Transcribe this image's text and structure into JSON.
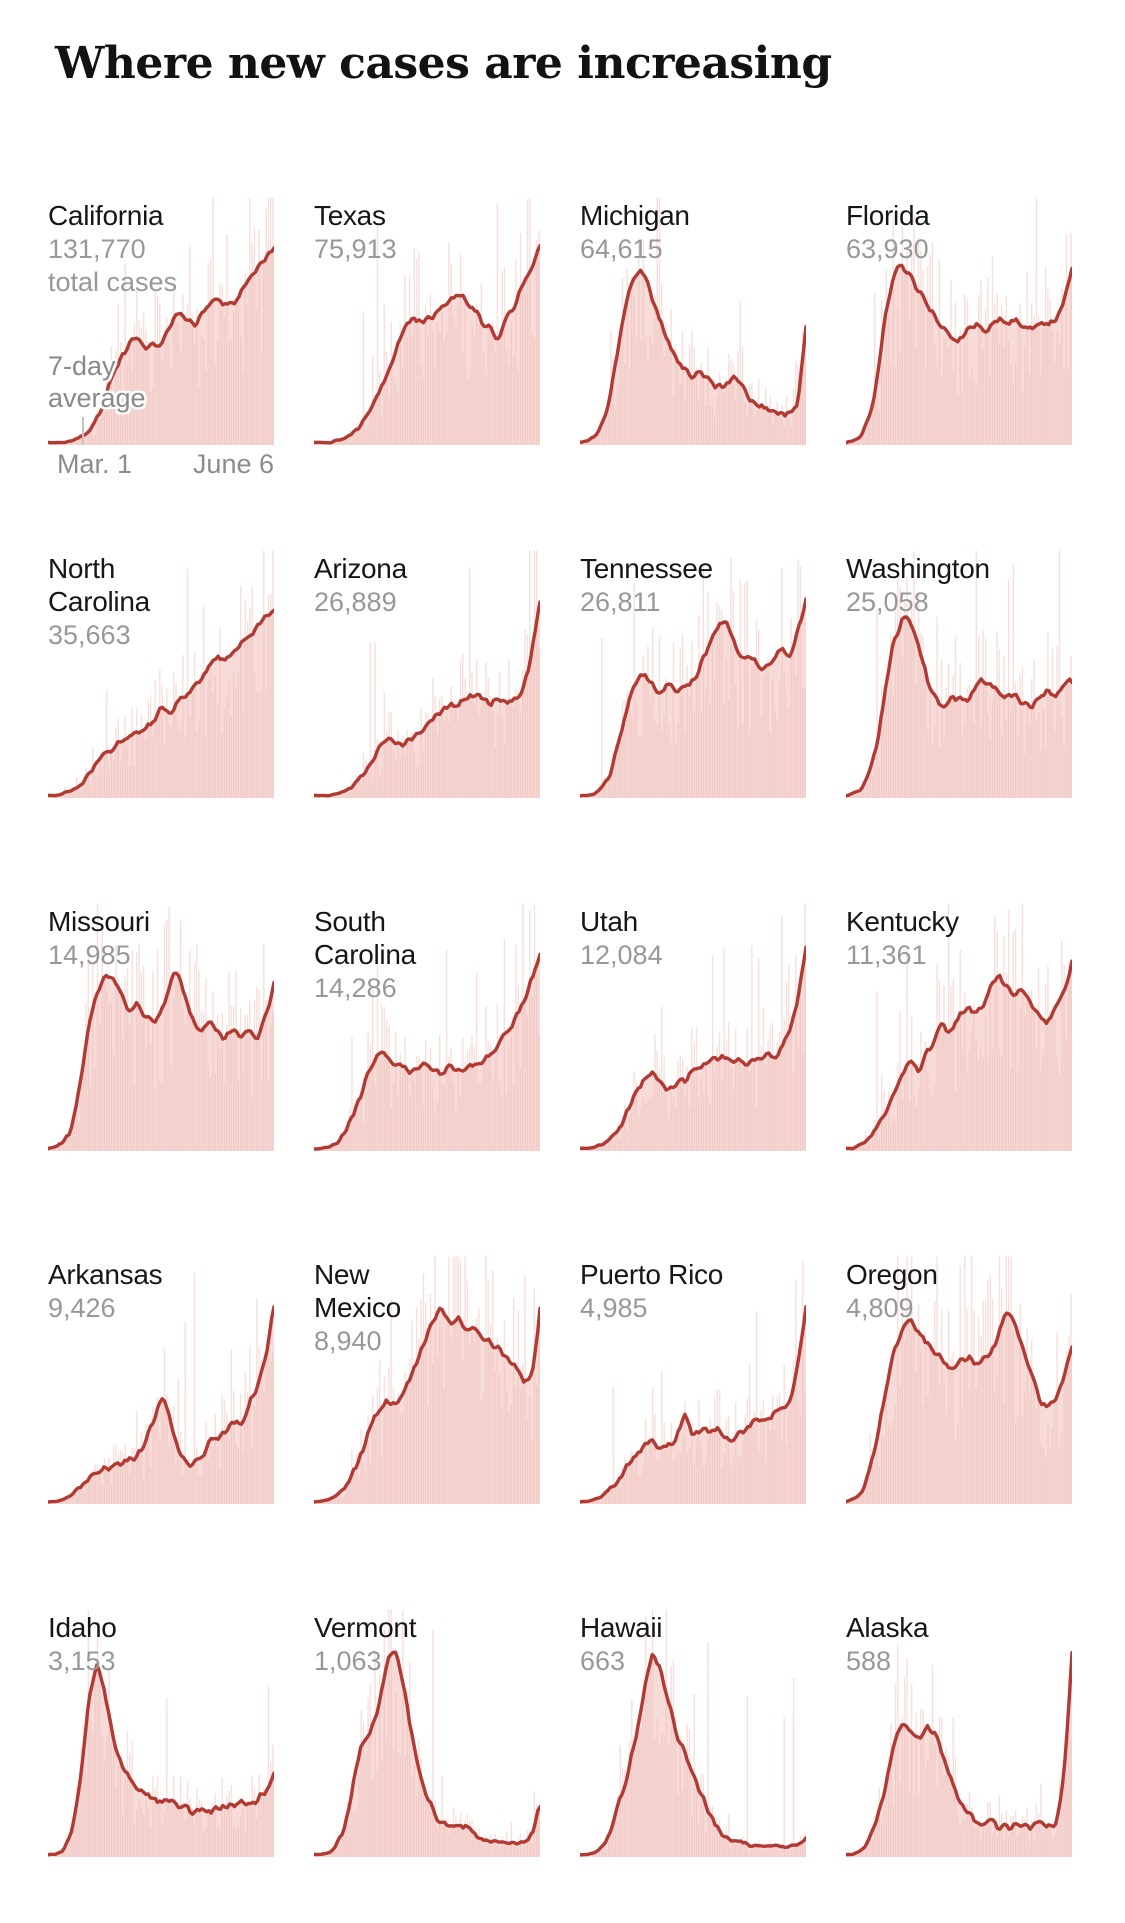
{
  "title": "Where new cases are increasing",
  "colors": {
    "line_red": "#b13a32",
    "fill_pink": "#eeb8b2",
    "title_text": "#121212",
    "state_name_text": "#161616",
    "number_text": "#989898",
    "annotation_text": "#8a8a8a",
    "axis_tick": "#c4c4c4",
    "background": "#ffffff"
  },
  "axis": {
    "start_label": "Mar. 1",
    "end_label": "June 6"
  },
  "annotations": {
    "total_cases_suffix": "total cases",
    "avg_label": "7-day average"
  },
  "chart_data": {
    "type": "area",
    "layout": "small-multiples-grid-4-cols-5-rows",
    "title": "Where new cases are increasing",
    "x_range": [
      "Mar. 1",
      "June 6"
    ],
    "bars_series": "daily new cases",
    "line_series": "7-day average",
    "y_normalization": "each panel normalized to its own scale; avg_trend values are fraction of panel plot height",
    "states": [
      {
        "name": "California",
        "display_name": "California",
        "total_cases": "131,770",
        "avg_trend": [
          0.01,
          0.01,
          0.01,
          0.02,
          0.03,
          0.05,
          0.1,
          0.18,
          0.28,
          0.36,
          0.42,
          0.43,
          0.4,
          0.41,
          0.4,
          0.47,
          0.54,
          0.5,
          0.49,
          0.53,
          0.58,
          0.6,
          0.56,
          0.58,
          0.63,
          0.66,
          0.71,
          0.76,
          0.8
        ]
      },
      {
        "name": "Texas",
        "display_name": "Texas",
        "total_cases": "75,913",
        "avg_trend": [
          0.01,
          0.01,
          0.01,
          0.02,
          0.03,
          0.05,
          0.09,
          0.15,
          0.22,
          0.3,
          0.38,
          0.46,
          0.52,
          0.5,
          0.51,
          0.53,
          0.56,
          0.6,
          0.63,
          0.58,
          0.54,
          0.5,
          0.46,
          0.44,
          0.52,
          0.58,
          0.65,
          0.73,
          0.82
        ]
      },
      {
        "name": "Michigan",
        "display_name": "Michigan",
        "total_cases": "64,615",
        "avg_trend": [
          0.01,
          0.02,
          0.04,
          0.1,
          0.25,
          0.45,
          0.62,
          0.72,
          0.7,
          0.6,
          0.5,
          0.42,
          0.35,
          0.3,
          0.28,
          0.3,
          0.26,
          0.23,
          0.25,
          0.28,
          0.24,
          0.19,
          0.16,
          0.16,
          0.14,
          0.13,
          0.12,
          0.16,
          0.5
        ]
      },
      {
        "name": "Florida",
        "display_name": "Florida",
        "total_cases": "63,930",
        "avg_trend": [
          0.01,
          0.02,
          0.04,
          0.12,
          0.3,
          0.55,
          0.7,
          0.74,
          0.68,
          0.63,
          0.58,
          0.52,
          0.47,
          0.44,
          0.42,
          0.46,
          0.49,
          0.46,
          0.48,
          0.51,
          0.49,
          0.51,
          0.49,
          0.47,
          0.51,
          0.49,
          0.52,
          0.58,
          0.73
        ]
      },
      {
        "name": "North Carolina",
        "display_name": "North\nCarolina",
        "total_cases": "35,663",
        "avg_trend": [
          0.01,
          0.01,
          0.02,
          0.03,
          0.05,
          0.09,
          0.13,
          0.17,
          0.21,
          0.24,
          0.23,
          0.26,
          0.29,
          0.32,
          0.36,
          0.34,
          0.38,
          0.41,
          0.44,
          0.48,
          0.54,
          0.58,
          0.55,
          0.6,
          0.64,
          0.66,
          0.7,
          0.74,
          0.78
        ]
      },
      {
        "name": "Arizona",
        "display_name": "Arizona",
        "total_cases": "26,889",
        "avg_trend": [
          0.01,
          0.01,
          0.01,
          0.02,
          0.03,
          0.05,
          0.09,
          0.14,
          0.19,
          0.23,
          0.22,
          0.23,
          0.24,
          0.26,
          0.29,
          0.32,
          0.36,
          0.39,
          0.38,
          0.41,
          0.43,
          0.4,
          0.38,
          0.4,
          0.39,
          0.42,
          0.45,
          0.6,
          0.82
        ]
      },
      {
        "name": "Tennessee",
        "display_name": "Tennessee",
        "total_cases": "26,811",
        "avg_trend": [
          0.01,
          0.01,
          0.02,
          0.05,
          0.12,
          0.25,
          0.38,
          0.48,
          0.52,
          0.46,
          0.44,
          0.46,
          0.44,
          0.45,
          0.48,
          0.55,
          0.63,
          0.7,
          0.74,
          0.64,
          0.56,
          0.59,
          0.54,
          0.52,
          0.57,
          0.61,
          0.58,
          0.68,
          0.8
        ]
      },
      {
        "name": "Washington",
        "display_name": "Washington",
        "total_cases": "25,058",
        "avg_trend": [
          0.01,
          0.02,
          0.04,
          0.1,
          0.25,
          0.48,
          0.65,
          0.73,
          0.72,
          0.62,
          0.5,
          0.41,
          0.38,
          0.4,
          0.42,
          0.4,
          0.45,
          0.49,
          0.46,
          0.42,
          0.41,
          0.43,
          0.38,
          0.36,
          0.41,
          0.44,
          0.42,
          0.45,
          0.49
        ]
      },
      {
        "name": "Missouri",
        "display_name": "Missouri",
        "total_cases": "14,985",
        "avg_trend": [
          0.01,
          0.02,
          0.04,
          0.1,
          0.28,
          0.5,
          0.65,
          0.72,
          0.7,
          0.64,
          0.58,
          0.6,
          0.55,
          0.52,
          0.57,
          0.66,
          0.76,
          0.62,
          0.52,
          0.5,
          0.54,
          0.48,
          0.46,
          0.51,
          0.47,
          0.5,
          0.47,
          0.55,
          0.68
        ]
      },
      {
        "name": "South Carolina",
        "display_name": "South\nCarolina",
        "total_cases": "14,286",
        "avg_trend": [
          0.01,
          0.01,
          0.02,
          0.04,
          0.08,
          0.15,
          0.25,
          0.35,
          0.41,
          0.4,
          0.36,
          0.33,
          0.32,
          0.34,
          0.36,
          0.33,
          0.32,
          0.34,
          0.32,
          0.34,
          0.36,
          0.38,
          0.41,
          0.44,
          0.48,
          0.55,
          0.62,
          0.71,
          0.81
        ]
      },
      {
        "name": "Utah",
        "display_name": "Utah",
        "total_cases": "12,084",
        "avg_trend": [
          0.01,
          0.01,
          0.02,
          0.03,
          0.06,
          0.11,
          0.17,
          0.24,
          0.29,
          0.31,
          0.27,
          0.25,
          0.27,
          0.29,
          0.32,
          0.35,
          0.37,
          0.38,
          0.39,
          0.37,
          0.38,
          0.36,
          0.38,
          0.4,
          0.38,
          0.42,
          0.48,
          0.62,
          0.82
        ]
      },
      {
        "name": "Kentucky",
        "display_name": "Kentucky",
        "total_cases": "11,361",
        "avg_trend": [
          0.01,
          0.01,
          0.03,
          0.06,
          0.11,
          0.17,
          0.24,
          0.31,
          0.36,
          0.33,
          0.4,
          0.46,
          0.51,
          0.48,
          0.55,
          0.6,
          0.56,
          0.6,
          0.67,
          0.72,
          0.66,
          0.62,
          0.67,
          0.6,
          0.55,
          0.52,
          0.58,
          0.66,
          0.77
        ]
      },
      {
        "name": "Arkansas",
        "display_name": "Arkansas",
        "total_cases": "9,426",
        "avg_trend": [
          0.01,
          0.01,
          0.02,
          0.04,
          0.07,
          0.1,
          0.12,
          0.14,
          0.16,
          0.17,
          0.19,
          0.2,
          0.24,
          0.33,
          0.45,
          0.36,
          0.24,
          0.17,
          0.15,
          0.19,
          0.25,
          0.27,
          0.3,
          0.34,
          0.32,
          0.42,
          0.47,
          0.6,
          0.82
        ]
      },
      {
        "name": "New Mexico",
        "display_name": "New\nMexico",
        "total_cases": "8,940",
        "avg_trend": [
          0.01,
          0.01,
          0.02,
          0.04,
          0.08,
          0.14,
          0.22,
          0.31,
          0.39,
          0.42,
          0.41,
          0.44,
          0.52,
          0.6,
          0.68,
          0.76,
          0.8,
          0.74,
          0.76,
          0.7,
          0.71,
          0.68,
          0.66,
          0.63,
          0.6,
          0.55,
          0.5,
          0.52,
          0.78
        ]
      },
      {
        "name": "Puerto Rico",
        "display_name": "Puerto Rico",
        "total_cases": "4,985",
        "avg_trend": [
          0.01,
          0.01,
          0.02,
          0.04,
          0.07,
          0.12,
          0.17,
          0.21,
          0.24,
          0.25,
          0.24,
          0.25,
          0.27,
          0.38,
          0.27,
          0.31,
          0.29,
          0.31,
          0.26,
          0.27,
          0.3,
          0.32,
          0.35,
          0.33,
          0.36,
          0.39,
          0.42,
          0.55,
          0.82
        ]
      },
      {
        "name": "Oregon",
        "display_name": "Oregon",
        "total_cases": "4,809",
        "avg_trend": [
          0.01,
          0.02,
          0.05,
          0.14,
          0.3,
          0.48,
          0.62,
          0.73,
          0.75,
          0.7,
          0.66,
          0.62,
          0.58,
          0.56,
          0.58,
          0.6,
          0.57,
          0.59,
          0.63,
          0.7,
          0.78,
          0.73,
          0.63,
          0.52,
          0.42,
          0.38,
          0.44,
          0.52,
          0.66
        ]
      },
      {
        "name": "Idaho",
        "display_name": "Idaho",
        "total_cases": "3,153",
        "avg_trend": [
          0.01,
          0.01,
          0.03,
          0.1,
          0.3,
          0.62,
          0.8,
          0.68,
          0.5,
          0.38,
          0.33,
          0.27,
          0.25,
          0.24,
          0.22,
          0.23,
          0.2,
          0.21,
          0.18,
          0.2,
          0.18,
          0.2,
          0.21,
          0.2,
          0.23,
          0.22,
          0.24,
          0.26,
          0.33
        ]
      },
      {
        "name": "Vermont",
        "display_name": "Vermont",
        "total_cases": "1,063",
        "avg_trend": [
          0.01,
          0.01,
          0.02,
          0.06,
          0.15,
          0.32,
          0.48,
          0.52,
          0.62,
          0.8,
          0.84,
          0.72,
          0.52,
          0.36,
          0.24,
          0.17,
          0.13,
          0.12,
          0.13,
          0.11,
          0.09,
          0.07,
          0.06,
          0.06,
          0.05,
          0.06,
          0.06,
          0.09,
          0.22
        ]
      },
      {
        "name": "Hawaii",
        "display_name": "Hawaii",
        "total_cases": "663",
        "avg_trend": [
          0.01,
          0.01,
          0.02,
          0.05,
          0.12,
          0.24,
          0.36,
          0.5,
          0.68,
          0.84,
          0.76,
          0.62,
          0.5,
          0.42,
          0.34,
          0.26,
          0.18,
          0.12,
          0.09,
          0.07,
          0.06,
          0.05,
          0.04,
          0.04,
          0.05,
          0.04,
          0.05,
          0.05,
          0.07
        ]
      },
      {
        "name": "Alaska",
        "display_name": "Alaska",
        "total_cases": "588",
        "avg_trend": [
          0.01,
          0.01,
          0.03,
          0.07,
          0.16,
          0.3,
          0.46,
          0.56,
          0.5,
          0.48,
          0.54,
          0.5,
          0.42,
          0.32,
          0.24,
          0.19,
          0.15,
          0.13,
          0.15,
          0.12,
          0.13,
          0.12,
          0.13,
          0.12,
          0.13,
          0.12,
          0.14,
          0.3,
          0.82
        ]
      }
    ]
  }
}
